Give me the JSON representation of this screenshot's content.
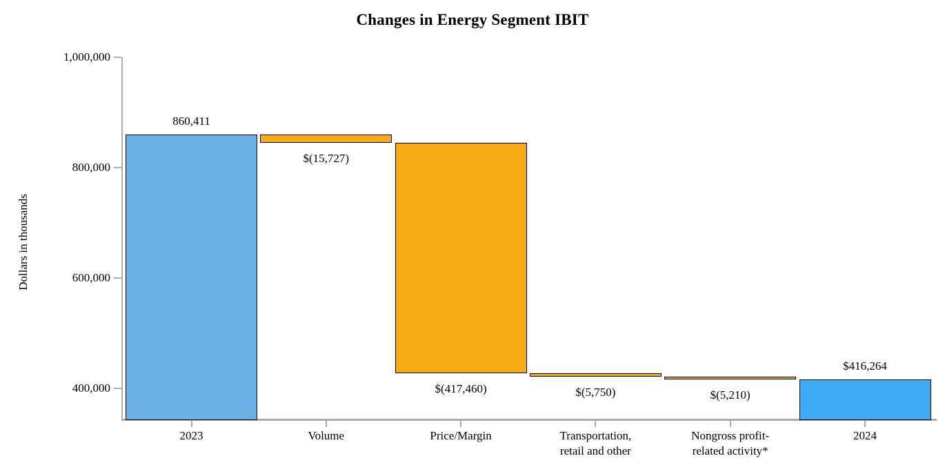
{
  "page": {
    "background": "#ffffff"
  },
  "chart_data": {
    "type": "bar",
    "subtype": "waterfall",
    "title": "Changes in Energy Segment IBIT",
    "xlabel": "",
    "ylabel": "Dollars in thousands",
    "ylim": [
      345000,
      1000000
    ],
    "grid": false,
    "legend": "none",
    "y_ticks": [
      {
        "value": 1000000,
        "label": "1,000,000"
      },
      {
        "value": 800000,
        "label": "800,000"
      },
      {
        "value": 600000,
        "label": "600,000"
      },
      {
        "value": 400000,
        "label": "400,000"
      }
    ],
    "colors": {
      "blue_2023": "#6BB0E2",
      "blue_2024": "#3FABF7",
      "orange": "#F7AB15",
      "bar_border": "#000000",
      "axis": "#ABABAB",
      "text": "#000000"
    },
    "bars": [
      {
        "category_lines": [
          "2023"
        ],
        "kind": "total",
        "start": 0,
        "end": 860411,
        "value": 860411,
        "value_label": "860,411",
        "label_position": "above",
        "color": "blue_2023"
      },
      {
        "category_lines": [
          "Volume"
        ],
        "kind": "delta",
        "start": 860411,
        "end": 844684,
        "value": -15727,
        "value_label": "$(15,727)",
        "label_position": "below",
        "color": "orange"
      },
      {
        "category_lines": [
          "Price/Margin"
        ],
        "kind": "delta",
        "start": 844684,
        "end": 427224,
        "value": -417460,
        "value_label": "$(417,460)",
        "label_position": "below",
        "color": "orange"
      },
      {
        "category_lines": [
          "Transportation,",
          "retail and other"
        ],
        "kind": "delta",
        "start": 427224,
        "end": 421474,
        "value": -5750,
        "value_label": "$(5,750)",
        "label_position": "below",
        "color": "orange"
      },
      {
        "category_lines": [
          "Nongross profit-",
          "related activity*"
        ],
        "kind": "delta",
        "start": 421474,
        "end": 416264,
        "value": -5210,
        "value_label": "$(5,210)",
        "label_position": "below",
        "color": "orange"
      },
      {
        "category_lines": [
          "2024"
        ],
        "kind": "total",
        "start": 0,
        "end": 416264,
        "value": 416264,
        "value_label": "$416,264",
        "label_position": "above",
        "color": "blue_2024"
      }
    ]
  }
}
